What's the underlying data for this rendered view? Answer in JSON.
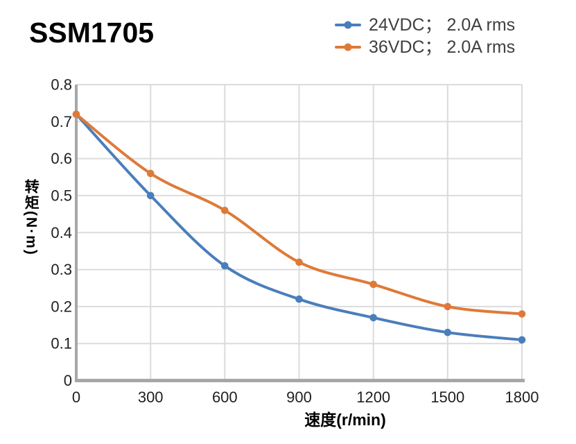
{
  "chart_data": {
    "type": "line",
    "title": "SSM1705",
    "x": [
      0,
      300,
      600,
      900,
      1200,
      1500,
      1800
    ],
    "series": [
      {
        "name": "24VDC； 2.0A rms",
        "color": "#4A7EBB",
        "values": [
          0.72,
          0.5,
          0.31,
          0.22,
          0.17,
          0.13,
          0.11
        ]
      },
      {
        "name": "36VDC； 2.0A rms",
        "color": "#DE7A39",
        "values": [
          0.72,
          0.56,
          0.46,
          0.32,
          0.26,
          0.2,
          0.18
        ]
      }
    ],
    "xlabel": "速度(r/min)",
    "ylabel": "转矩(N·m)",
    "xlim": [
      0,
      1800
    ],
    "ylim": [
      0,
      0.8
    ],
    "x_ticks": [
      "0",
      "300",
      "600",
      "900",
      "1200",
      "1500",
      "1800"
    ],
    "y_ticks": [
      "0",
      "0.1",
      "0.2",
      "0.3",
      "0.4",
      "0.5",
      "0.6",
      "0.7",
      "0.8"
    ],
    "grid": true,
    "line_style": "smooth",
    "marker": "circle",
    "legend_position": "top-right",
    "colors": {
      "grid": "#DBDBDB",
      "axis": "#A7A7A7",
      "tick_text": "#1F1F1F",
      "legend_text": "#3F3F3F",
      "title_text": "#000000"
    }
  }
}
